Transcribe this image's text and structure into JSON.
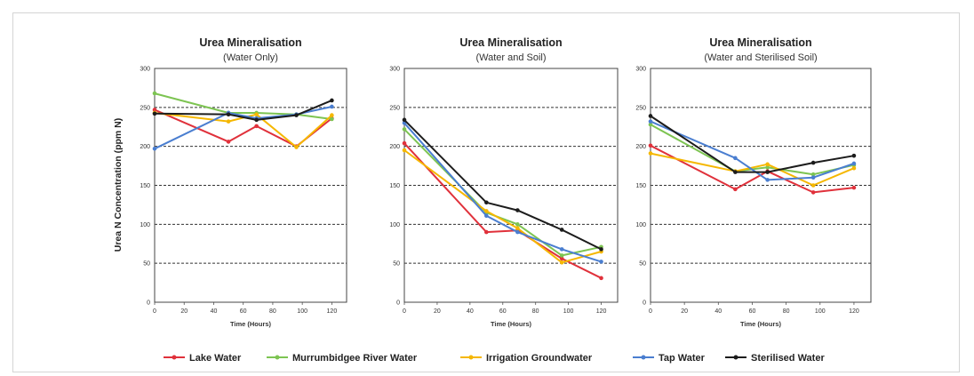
{
  "ylabel": "Urea N Concentration (ppm N)",
  "legend_position": "bottom",
  "chart_data": [
    {
      "type": "line",
      "title": "Urea Mineralisation",
      "subtitle": "(Water Only)",
      "xlabel": "Time (Hours)",
      "xlim": [
        0,
        130
      ],
      "ylim": [
        0,
        300
      ],
      "xticks": [
        0,
        20,
        40,
        60,
        80,
        100,
        120
      ],
      "yticks": [
        0,
        50,
        100,
        150,
        200,
        250,
        300
      ],
      "series": [
        {
          "name": "Lake Water",
          "color": "#e0313b",
          "x": [
            0,
            50,
            69,
            96,
            120
          ],
          "y": [
            247,
            206,
            226,
            200,
            236
          ]
        },
        {
          "name": "Murrumbidgee River Water",
          "color": "#7dc452",
          "x": [
            0,
            50,
            69,
            96,
            120
          ],
          "y": [
            268,
            243,
            243,
            241,
            235
          ]
        },
        {
          "name": "Irrigation Groundwater",
          "color": "#f5b700",
          "x": [
            0,
            50,
            69,
            96,
            120
          ],
          "y": [
            243,
            232,
            241,
            199,
            240
          ]
        },
        {
          "name": "Tap Water",
          "color": "#4a7ed0",
          "x": [
            0,
            50,
            69,
            96,
            120
          ],
          "y": [
            197,
            243,
            236,
            241,
            251
          ]
        },
        {
          "name": "Sterilised Water",
          "color": "#1c1c1c",
          "x": [
            0,
            50,
            69,
            96,
            120
          ],
          "y": [
            242,
            241,
            234,
            240,
            259
          ]
        }
      ]
    },
    {
      "type": "line",
      "title": "Urea Mineralisation",
      "subtitle": "(Water and Soil)",
      "xlabel": "Time (Hours)",
      "xlim": [
        0,
        130
      ],
      "ylim": [
        0,
        300
      ],
      "xticks": [
        0,
        20,
        40,
        60,
        80,
        100,
        120
      ],
      "yticks": [
        0,
        50,
        100,
        150,
        200,
        250,
        300
      ],
      "series": [
        {
          "name": "Lake Water",
          "color": "#e0313b",
          "x": [
            0,
            50,
            69,
            96,
            120
          ],
          "y": [
            204,
            90,
            92,
            56,
            31
          ]
        },
        {
          "name": "Murrumbidgee River Water",
          "color": "#7dc452",
          "x": [
            0,
            50,
            69,
            96,
            120
          ],
          "y": [
            222,
            115,
            100,
            60,
            71
          ]
        },
        {
          "name": "Irrigation Groundwater",
          "color": "#f5b700",
          "x": [
            0,
            50,
            69,
            96,
            120
          ],
          "y": [
            195,
            117,
            95,
            51,
            65
          ]
        },
        {
          "name": "Tap Water",
          "color": "#4a7ed0",
          "x": [
            0,
            50,
            69,
            96,
            120
          ],
          "y": [
            230,
            111,
            90,
            68,
            52
          ]
        },
        {
          "name": "Sterilised Water",
          "color": "#1c1c1c",
          "x": [
            0,
            50,
            69,
            96,
            120
          ],
          "y": [
            234,
            128,
            118,
            93,
            68
          ]
        }
      ]
    },
    {
      "type": "line",
      "title": "Urea Mineralisation",
      "subtitle": "(Water and Sterilised Soil)",
      "xlabel": "Time (Hours)",
      "xlim": [
        0,
        130
      ],
      "ylim": [
        0,
        300
      ],
      "xticks": [
        0,
        20,
        40,
        60,
        80,
        100,
        120
      ],
      "yticks": [
        0,
        50,
        100,
        150,
        200,
        250,
        300
      ],
      "series": [
        {
          "name": "Lake Water",
          "color": "#e0313b",
          "x": [
            0,
            50,
            69,
            96,
            120
          ],
          "y": [
            201,
            145,
            168,
            141,
            147
          ]
        },
        {
          "name": "Murrumbidgee River Water",
          "color": "#7dc452",
          "x": [
            0,
            50,
            69,
            96,
            120
          ],
          "y": [
            228,
            168,
            173,
            164,
            176
          ]
        },
        {
          "name": "Irrigation Groundwater",
          "color": "#f5b700",
          "x": [
            0,
            50,
            69,
            96,
            120
          ],
          "y": [
            191,
            168,
            177,
            150,
            172
          ]
        },
        {
          "name": "Tap Water",
          "color": "#4a7ed0",
          "x": [
            0,
            50,
            69,
            96,
            120
          ],
          "y": [
            232,
            185,
            157,
            160,
            178
          ]
        },
        {
          "name": "Sterilised Water",
          "color": "#1c1c1c",
          "x": [
            0,
            50,
            69,
            96,
            120
          ],
          "y": [
            239,
            167,
            167,
            179,
            188
          ]
        }
      ]
    }
  ]
}
